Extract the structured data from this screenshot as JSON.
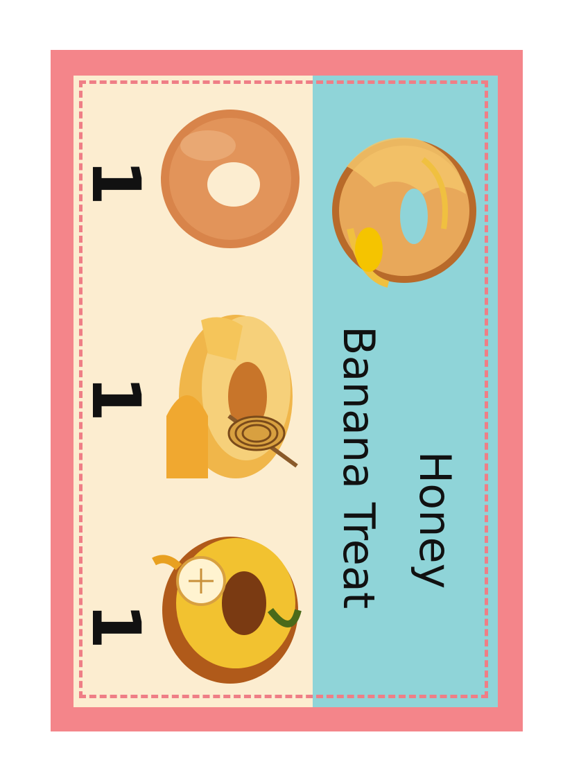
{
  "card": {
    "title_line1": "Honey",
    "title_line2": "Banana Treat",
    "colors": {
      "frame": "#f4858a",
      "cream": "#fcedd0",
      "teal": "#8fd4d8",
      "dash": "#ef7e86"
    }
  },
  "ingredients": [
    {
      "icon": "plain-donut-icon",
      "qty": "1"
    },
    {
      "icon": "honey-donut-icon",
      "qty": "1"
    },
    {
      "icon": "banana-donut-icon",
      "qty": "1"
    }
  ],
  "result_icon": "honey-banana-donut-icon"
}
